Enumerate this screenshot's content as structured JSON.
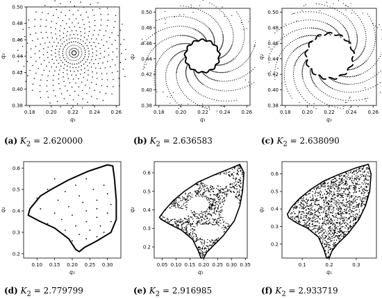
{
  "chart_data": [
    {
      "type": "scatter",
      "caption": {
        "tag": "(a)",
        "param": "K",
        "sub": "2",
        "eq": " = ",
        "value": "2.620000"
      },
      "xlabel": "q₁",
      "ylabel": "q₂",
      "xlim": [
        0.177,
        0.263
      ],
      "ylim": [
        0.38,
        0.5
      ],
      "xticks": [
        0.18,
        0.2,
        0.22,
        0.24,
        0.26
      ],
      "xticklabels": [
        "0.18",
        "0.20",
        "0.22",
        "0.24",
        "0.26"
      ],
      "yticks": [
        0.38,
        0.4,
        0.42,
        0.44,
        0.46,
        0.48,
        0.5
      ],
      "yticklabels": [
        "0.38",
        "0.40",
        "0.42",
        "0.44",
        "0.46",
        "0.48",
        "0.50"
      ],
      "pattern": "spiral-star",
      "center": [
        0.221,
        0.444
      ],
      "inner_radius": 0.002,
      "outer_radius": 0.052,
      "spiral_arms": 32,
      "points_per_arm": 15,
      "twist_turns": 0.18,
      "orbit_color": "#000000"
    },
    {
      "type": "scatter",
      "caption": {
        "tag": "(b)",
        "param": "K",
        "sub": "2",
        "eq": " = ",
        "value": "2.636583"
      },
      "xlabel": "q₁",
      "ylabel": "q₂",
      "xlim": [
        0.177,
        0.263
      ],
      "ylim": [
        0.38,
        0.505
      ],
      "xticks": [
        0.18,
        0.2,
        0.22,
        0.24,
        0.26
      ],
      "xticklabels": [
        "0.18",
        "0.20",
        "0.22",
        "0.24",
        "0.26"
      ],
      "yticks": [
        0.38,
        0.4,
        0.42,
        0.44,
        0.46,
        0.48,
        0.5
      ],
      "yticklabels": [
        "0.38",
        "0.40",
        "0.42",
        "0.44",
        "0.46",
        "0.48",
        "0.50"
      ],
      "pattern": "ring-with-spiral-arms",
      "center": [
        0.2195,
        0.4435
      ],
      "ring_radius": 0.0155,
      "outer_radius": 0.055,
      "spiral_arms": 13,
      "points_per_arm": 40,
      "orbit_color": "#000000"
    },
    {
      "type": "scatter",
      "caption": {
        "tag": "(c)",
        "param": "K",
        "sub": "2",
        "eq": " = ",
        "value": "2.638090"
      },
      "xlabel": "q₁",
      "ylabel": "q₂",
      "xlim": [
        0.177,
        0.263
      ],
      "ylim": [
        0.38,
        0.505
      ],
      "xticks": [
        0.18,
        0.2,
        0.22,
        0.24,
        0.26
      ],
      "xticklabels": [
        "0.18",
        "0.20",
        "0.22",
        "0.24",
        "0.26"
      ],
      "yticks": [
        0.38,
        0.4,
        0.42,
        0.44,
        0.46,
        0.48,
        0.5
      ],
      "yticklabels": [
        "0.38",
        "0.40",
        "0.42",
        "0.44",
        "0.46",
        "0.48",
        "0.50"
      ],
      "pattern": "broken-ring-with-spiral-arms",
      "center": [
        0.2205,
        0.4435
      ],
      "ring_radius": 0.0215,
      "outer_radius": 0.055,
      "spiral_arms": 14,
      "points_per_arm": 36,
      "orbit_color": "#000000"
    },
    {
      "type": "scatter",
      "caption": {
        "tag": "(d)",
        "param": "K",
        "sub": "2",
        "eq": " = ",
        "value": "2.779799"
      },
      "xlabel": "q₁",
      "ylabel": "q₂",
      "xlim": [
        0.062,
        0.338
      ],
      "ylim": [
        0.18,
        0.63
      ],
      "xticks": [
        0.1,
        0.15,
        0.2,
        0.25,
        0.3
      ],
      "xticklabels": [
        "0.10",
        "0.15",
        "0.20",
        "0.25",
        "0.30"
      ],
      "yticks": [
        0.2,
        0.3,
        0.4,
        0.5,
        0.6
      ],
      "yticklabels": [
        "0.2",
        "0.3",
        "0.4",
        "0.5",
        "0.6"
      ],
      "pattern": "closed-curve-with-interior-dots",
      "outline": [
        [
          0.3,
          0.615
        ],
        [
          0.315,
          0.61
        ],
        [
          0.32,
          0.55
        ],
        [
          0.325,
          0.45
        ],
        [
          0.325,
          0.36
        ],
        [
          0.31,
          0.3
        ],
        [
          0.27,
          0.26
        ],
        [
          0.235,
          0.23
        ],
        [
          0.22,
          0.21
        ],
        [
          0.21,
          0.22
        ],
        [
          0.19,
          0.27
        ],
        [
          0.15,
          0.32
        ],
        [
          0.11,
          0.35
        ],
        [
          0.075,
          0.38
        ],
        [
          0.08,
          0.41
        ],
        [
          0.095,
          0.44
        ],
        [
          0.11,
          0.47
        ],
        [
          0.14,
          0.5
        ],
        [
          0.19,
          0.545
        ],
        [
          0.245,
          0.585
        ],
        [
          0.3,
          0.615
        ]
      ],
      "interior_points": [
        [
          0.15,
          0.55
        ],
        [
          0.24,
          0.55
        ],
        [
          0.21,
          0.52
        ],
        [
          0.29,
          0.52
        ],
        [
          0.13,
          0.5
        ],
        [
          0.26,
          0.5
        ],
        [
          0.18,
          0.49
        ],
        [
          0.3,
          0.48
        ],
        [
          0.22,
          0.47
        ],
        [
          0.1,
          0.46
        ],
        [
          0.27,
          0.45
        ],
        [
          0.16,
          0.45
        ],
        [
          0.23,
          0.44
        ],
        [
          0.31,
          0.43
        ],
        [
          0.19,
          0.42
        ],
        [
          0.27,
          0.41
        ],
        [
          0.11,
          0.41
        ],
        [
          0.24,
          0.4
        ],
        [
          0.15,
          0.39
        ],
        [
          0.3,
          0.39
        ],
        [
          0.2,
          0.38
        ],
        [
          0.27,
          0.37
        ],
        [
          0.17,
          0.36
        ],
        [
          0.24,
          0.35
        ],
        [
          0.31,
          0.35
        ],
        [
          0.13,
          0.34
        ],
        [
          0.21,
          0.33
        ],
        [
          0.28,
          0.33
        ],
        [
          0.18,
          0.31
        ],
        [
          0.25,
          0.31
        ],
        [
          0.22,
          0.29
        ],
        [
          0.29,
          0.3
        ],
        [
          0.24,
          0.27
        ],
        [
          0.2,
          0.26
        ],
        [
          0.27,
          0.28
        ]
      ],
      "orbit_color": "#000000"
    },
    {
      "type": "scatter",
      "caption": {
        "tag": "(e)",
        "param": "K",
        "sub": "2",
        "eq": " = ",
        "value": "2.916985"
      },
      "xlabel": "q₁",
      "ylabel": "q₂",
      "xlim": [
        0.021,
        0.357
      ],
      "ylim": [
        0.14,
        0.66
      ],
      "xticks": [
        0.05,
        0.1,
        0.15,
        0.2,
        0.25,
        0.3,
        0.35
      ],
      "xticklabels": [
        "0.05",
        "0.10",
        "0.15",
        "0.20",
        "0.25",
        "0.30",
        "0.35"
      ],
      "yticks": [
        0.2,
        0.3,
        0.4,
        0.5,
        0.6
      ],
      "yticklabels": [
        "0.2",
        "0.3",
        "0.4",
        "0.5",
        "0.6"
      ],
      "pattern": "chaotic-with-island-chain",
      "outline": [
        [
          0.33,
          0.645
        ],
        [
          0.345,
          0.6
        ],
        [
          0.34,
          0.5
        ],
        [
          0.33,
          0.42
        ],
        [
          0.31,
          0.34
        ],
        [
          0.27,
          0.26
        ],
        [
          0.23,
          0.2
        ],
        [
          0.21,
          0.17
        ],
        [
          0.2,
          0.14
        ],
        [
          0.19,
          0.14
        ],
        [
          0.18,
          0.18
        ],
        [
          0.16,
          0.24
        ],
        [
          0.12,
          0.29
        ],
        [
          0.08,
          0.32
        ],
        [
          0.045,
          0.35
        ],
        [
          0.04,
          0.36
        ],
        [
          0.06,
          0.4
        ],
        [
          0.09,
          0.45
        ],
        [
          0.13,
          0.5
        ],
        [
          0.18,
          0.55
        ],
        [
          0.24,
          0.59
        ],
        [
          0.29,
          0.62
        ],
        [
          0.33,
          0.645
        ]
      ],
      "islands": [
        [
          0.12,
          0.52,
          0.06,
          0.03
        ],
        [
          0.25,
          0.56,
          0.06,
          0.03
        ],
        [
          0.3,
          0.4,
          0.03,
          0.08
        ],
        [
          0.22,
          0.28,
          0.05,
          0.04
        ],
        [
          0.1,
          0.38,
          0.05,
          0.03
        ],
        [
          0.18,
          0.43,
          0.04,
          0.04
        ]
      ],
      "orbit_color": "#000000"
    },
    {
      "type": "scatter",
      "caption": {
        "tag": "(f)",
        "param": "K",
        "sub": "2",
        "eq": " = ",
        "value": "2.933719"
      },
      "xlabel": "q₁",
      "ylabel": "q₂",
      "xlim": [
        0.025,
        0.375
      ],
      "ylim": [
        0.12,
        0.67
      ],
      "xticks": [
        0.1,
        0.2,
        0.3
      ],
      "xticklabels": [
        "0.1",
        "0.2",
        "0.3"
      ],
      "yticks": [
        0.2,
        0.3,
        0.4,
        0.5,
        0.6
      ],
      "yticklabels": [
        "0.2",
        "0.3",
        "0.4",
        "0.5",
        "0.6"
      ],
      "pattern": "chaotic-sea",
      "outline": [
        [
          0.345,
          0.655
        ],
        [
          0.355,
          0.6
        ],
        [
          0.35,
          0.5
        ],
        [
          0.335,
          0.42
        ],
        [
          0.31,
          0.34
        ],
        [
          0.27,
          0.26
        ],
        [
          0.23,
          0.2
        ],
        [
          0.21,
          0.16
        ],
        [
          0.2,
          0.12
        ],
        [
          0.19,
          0.12
        ],
        [
          0.18,
          0.17
        ],
        [
          0.16,
          0.24
        ],
        [
          0.12,
          0.29
        ],
        [
          0.08,
          0.32
        ],
        [
          0.05,
          0.35
        ],
        [
          0.045,
          0.37
        ],
        [
          0.06,
          0.41
        ],
        [
          0.09,
          0.46
        ],
        [
          0.13,
          0.51
        ],
        [
          0.18,
          0.56
        ],
        [
          0.24,
          0.6
        ],
        [
          0.3,
          0.635
        ],
        [
          0.345,
          0.655
        ]
      ],
      "orbit_color": "#000000"
    }
  ]
}
